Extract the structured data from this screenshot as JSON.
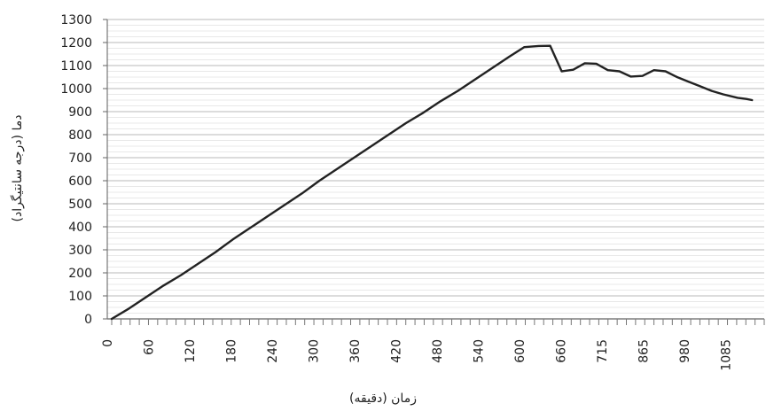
{
  "chart_data": {
    "type": "line",
    "title": "",
    "xlabel": "زمان (دقیقه)",
    "ylabel": "دما (درجه سانتیگراد)",
    "ylim": [
      0,
      1300
    ],
    "y_ticks": [
      0,
      100,
      200,
      300,
      400,
      500,
      600,
      700,
      800,
      900,
      1000,
      1100,
      1200,
      1300
    ],
    "x_tick_labels": [
      "0",
      "60",
      "120",
      "180",
      "240",
      "300",
      "360",
      "420",
      "480",
      "540",
      "600",
      "660",
      "715",
      "865",
      "980",
      "1085"
    ],
    "grid": {
      "major_y": true,
      "minor_y": true
    },
    "legend": "none",
    "series": [
      {
        "x": [
          0,
          30,
          60,
          90,
          120,
          150,
          180,
          210,
          240,
          270,
          300,
          330,
          360,
          390,
          420,
          450,
          480,
          510,
          540,
          570,
          600,
          630,
          660,
          690,
          715,
          740,
          760,
          780,
          800,
          820,
          840,
          860,
          880,
          900,
          920,
          940,
          960,
          980,
          1000,
          1020,
          1040,
          1060,
          1085,
          1100,
          1110
        ],
        "values": [
          0,
          45,
          95,
          145,
          190,
          240,
          290,
          345,
          395,
          445,
          495,
          545,
          600,
          650,
          700,
          750,
          800,
          850,
          895,
          945,
          990,
          1040,
          1090,
          1140,
          1180,
          1185,
          1186,
          1075,
          1082,
          1110,
          1108,
          1080,
          1075,
          1052,
          1055,
          1080,
          1075,
          1050,
          1030,
          1010,
          990,
          975,
          960,
          955,
          950
        ],
        "color": "#222222"
      }
    ]
  }
}
